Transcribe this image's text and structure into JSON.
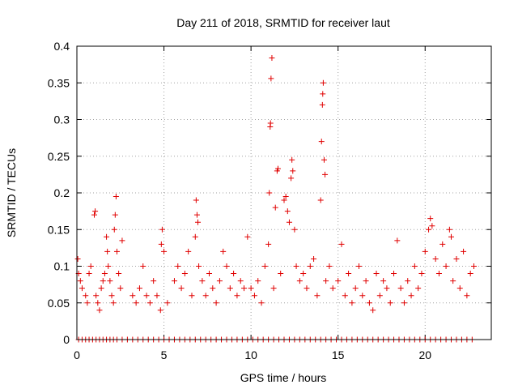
{
  "chart_data": {
    "type": "scatter",
    "title": "Day 211 of 2018, SRMTID for receiver laut",
    "xlabel": "GPS time / hours",
    "ylabel": "SRMTID / TECUs",
    "xlim": [
      0,
      23.8
    ],
    "ylim": [
      0,
      0.4
    ],
    "xticks": [
      0,
      5,
      10,
      15,
      20
    ],
    "xtick_labels": [
      "0",
      "5",
      "10",
      "15",
      "20"
    ],
    "yticks": [
      0,
      0.05,
      0.1,
      0.15,
      0.2,
      0.25,
      0.3,
      0.35,
      0.4
    ],
    "ytick_labels": [
      "0",
      "0.05",
      "0.1",
      "0.15",
      "0.2",
      "0.25",
      "0.3",
      "0.35",
      "0.4"
    ],
    "grid": true,
    "marker": "plus",
    "color": "#e00000",
    "series": [
      {
        "name": "SRMTID",
        "points": [
          [
            0.05,
            0.11
          ],
          [
            0.1,
            0.09
          ],
          [
            0.2,
            0.08
          ],
          [
            0.3,
            0.07
          ],
          [
            0.5,
            0.06
          ],
          [
            0.6,
            0.05
          ],
          [
            0.7,
            0.09
          ],
          [
            0.8,
            0.1
          ],
          [
            1.0,
            0.17
          ],
          [
            1.05,
            0.175
          ],
          [
            1.1,
            0.06
          ],
          [
            1.2,
            0.05
          ],
          [
            1.3,
            0.04
          ],
          [
            1.4,
            0.07
          ],
          [
            1.5,
            0.08
          ],
          [
            1.6,
            0.09
          ],
          [
            1.7,
            0.14
          ],
          [
            1.75,
            0.12
          ],
          [
            1.8,
            0.1
          ],
          [
            1.9,
            0.08
          ],
          [
            2.0,
            0.06
          ],
          [
            2.1,
            0.05
          ],
          [
            2.15,
            0.15
          ],
          [
            2.2,
            0.17
          ],
          [
            2.25,
            0.195
          ],
          [
            2.3,
            0.12
          ],
          [
            2.4,
            0.09
          ],
          [
            2.5,
            0.07
          ],
          [
            2.6,
            0.135
          ],
          [
            3.2,
            0.06
          ],
          [
            3.4,
            0.05
          ],
          [
            3.6,
            0.07
          ],
          [
            3.8,
            0.1
          ],
          [
            4.0,
            0.06
          ],
          [
            4.2,
            0.05
          ],
          [
            4.4,
            0.08
          ],
          [
            4.6,
            0.06
          ],
          [
            4.8,
            0.04
          ],
          [
            4.85,
            0.13
          ],
          [
            4.9,
            0.15
          ],
          [
            5.0,
            0.12
          ],
          [
            5.2,
            0.05
          ],
          [
            5.6,
            0.08
          ],
          [
            5.8,
            0.1
          ],
          [
            6.0,
            0.07
          ],
          [
            6.2,
            0.09
          ],
          [
            6.4,
            0.12
          ],
          [
            6.6,
            0.06
          ],
          [
            6.8,
            0.14
          ],
          [
            6.85,
            0.19
          ],
          [
            6.9,
            0.17
          ],
          [
            6.95,
            0.16
          ],
          [
            7.0,
            0.1
          ],
          [
            7.2,
            0.08
          ],
          [
            7.4,
            0.06
          ],
          [
            7.6,
            0.09
          ],
          [
            7.8,
            0.07
          ],
          [
            8.0,
            0.05
          ],
          [
            8.2,
            0.08
          ],
          [
            8.4,
            0.12
          ],
          [
            8.6,
            0.1
          ],
          [
            8.8,
            0.07
          ],
          [
            9.0,
            0.09
          ],
          [
            9.2,
            0.06
          ],
          [
            9.4,
            0.08
          ],
          [
            9.6,
            0.07
          ],
          [
            9.8,
            0.14
          ],
          [
            10.0,
            0.07
          ],
          [
            10.2,
            0.06
          ],
          [
            10.4,
            0.08
          ],
          [
            10.6,
            0.05
          ],
          [
            10.8,
            0.1
          ],
          [
            11.0,
            0.13
          ],
          [
            11.05,
            0.2
          ],
          [
            11.1,
            0.29
          ],
          [
            11.12,
            0.295
          ],
          [
            11.15,
            0.356
          ],
          [
            11.2,
            0.384
          ],
          [
            11.3,
            0.07
          ],
          [
            11.4,
            0.18
          ],
          [
            11.5,
            0.23
          ],
          [
            11.55,
            0.233
          ],
          [
            11.7,
            0.09
          ],
          [
            11.9,
            0.19
          ],
          [
            12.0,
            0.195
          ],
          [
            12.1,
            0.175
          ],
          [
            12.2,
            0.16
          ],
          [
            12.3,
            0.22
          ],
          [
            12.35,
            0.245
          ],
          [
            12.4,
            0.23
          ],
          [
            12.5,
            0.15
          ],
          [
            12.6,
            0.1
          ],
          [
            12.8,
            0.08
          ],
          [
            13.0,
            0.09
          ],
          [
            13.2,
            0.07
          ],
          [
            13.4,
            0.1
          ],
          [
            13.6,
            0.11
          ],
          [
            13.8,
            0.06
          ],
          [
            14.0,
            0.19
          ],
          [
            14.05,
            0.27
          ],
          [
            14.1,
            0.32
          ],
          [
            14.12,
            0.335
          ],
          [
            14.15,
            0.35
          ],
          [
            14.2,
            0.245
          ],
          [
            14.25,
            0.225
          ],
          [
            14.3,
            0.08
          ],
          [
            14.5,
            0.1
          ],
          [
            14.7,
            0.07
          ],
          [
            15.0,
            0.08
          ],
          [
            15.2,
            0.13
          ],
          [
            15.4,
            0.06
          ],
          [
            15.6,
            0.09
          ],
          [
            15.8,
            0.05
          ],
          [
            16.0,
            0.07
          ],
          [
            16.2,
            0.1
          ],
          [
            16.4,
            0.06
          ],
          [
            16.6,
            0.08
          ],
          [
            16.8,
            0.05
          ],
          [
            17.0,
            0.04
          ],
          [
            17.2,
            0.09
          ],
          [
            17.4,
            0.06
          ],
          [
            17.6,
            0.08
          ],
          [
            17.8,
            0.07
          ],
          [
            18.0,
            0.05
          ],
          [
            18.2,
            0.09
          ],
          [
            18.4,
            0.135
          ],
          [
            18.6,
            0.07
          ],
          [
            18.8,
            0.05
          ],
          [
            19.0,
            0.08
          ],
          [
            19.2,
            0.06
          ],
          [
            19.4,
            0.1
          ],
          [
            19.6,
            0.07
          ],
          [
            19.8,
            0.09
          ],
          [
            20.0,
            0.12
          ],
          [
            20.2,
            0.15
          ],
          [
            20.3,
            0.165
          ],
          [
            20.4,
            0.155
          ],
          [
            20.6,
            0.11
          ],
          [
            20.8,
            0.09
          ],
          [
            21.0,
            0.13
          ],
          [
            21.2,
            0.1
          ],
          [
            21.4,
            0.15
          ],
          [
            21.5,
            0.14
          ],
          [
            21.6,
            0.08
          ],
          [
            21.8,
            0.11
          ],
          [
            22.0,
            0.07
          ],
          [
            22.2,
            0.12
          ],
          [
            22.4,
            0.06
          ],
          [
            22.6,
            0.09
          ],
          [
            22.8,
            0.1
          ]
        ],
        "zero_points_x": [
          0.1,
          0.3,
          0.5,
          0.7,
          0.9,
          1.1,
          1.3,
          1.5,
          1.7,
          1.9,
          2.1,
          2.3,
          2.6,
          2.9,
          3.2,
          3.5,
          3.8,
          4.1,
          4.4,
          4.7,
          5.0,
          5.3,
          5.6,
          5.9,
          6.2,
          6.5,
          6.8,
          7.1,
          7.4,
          7.7,
          8.0,
          8.3,
          8.6,
          8.9,
          9.2,
          9.5,
          9.8,
          10.1,
          10.4,
          10.7,
          11.0,
          11.3,
          11.6,
          11.9,
          12.2,
          12.5,
          12.8,
          13.1,
          13.4,
          13.7,
          14.0,
          14.3,
          14.6,
          14.9,
          15.2,
          15.5,
          15.8,
          16.1,
          16.4,
          16.7,
          17.0,
          17.3,
          17.6,
          17.9,
          18.2,
          18.5,
          18.8,
          19.1,
          19.4,
          19.7,
          20.0,
          20.3,
          20.6,
          20.9,
          21.2,
          21.5,
          21.8,
          22.1,
          22.4,
          22.7
        ]
      }
    ]
  }
}
